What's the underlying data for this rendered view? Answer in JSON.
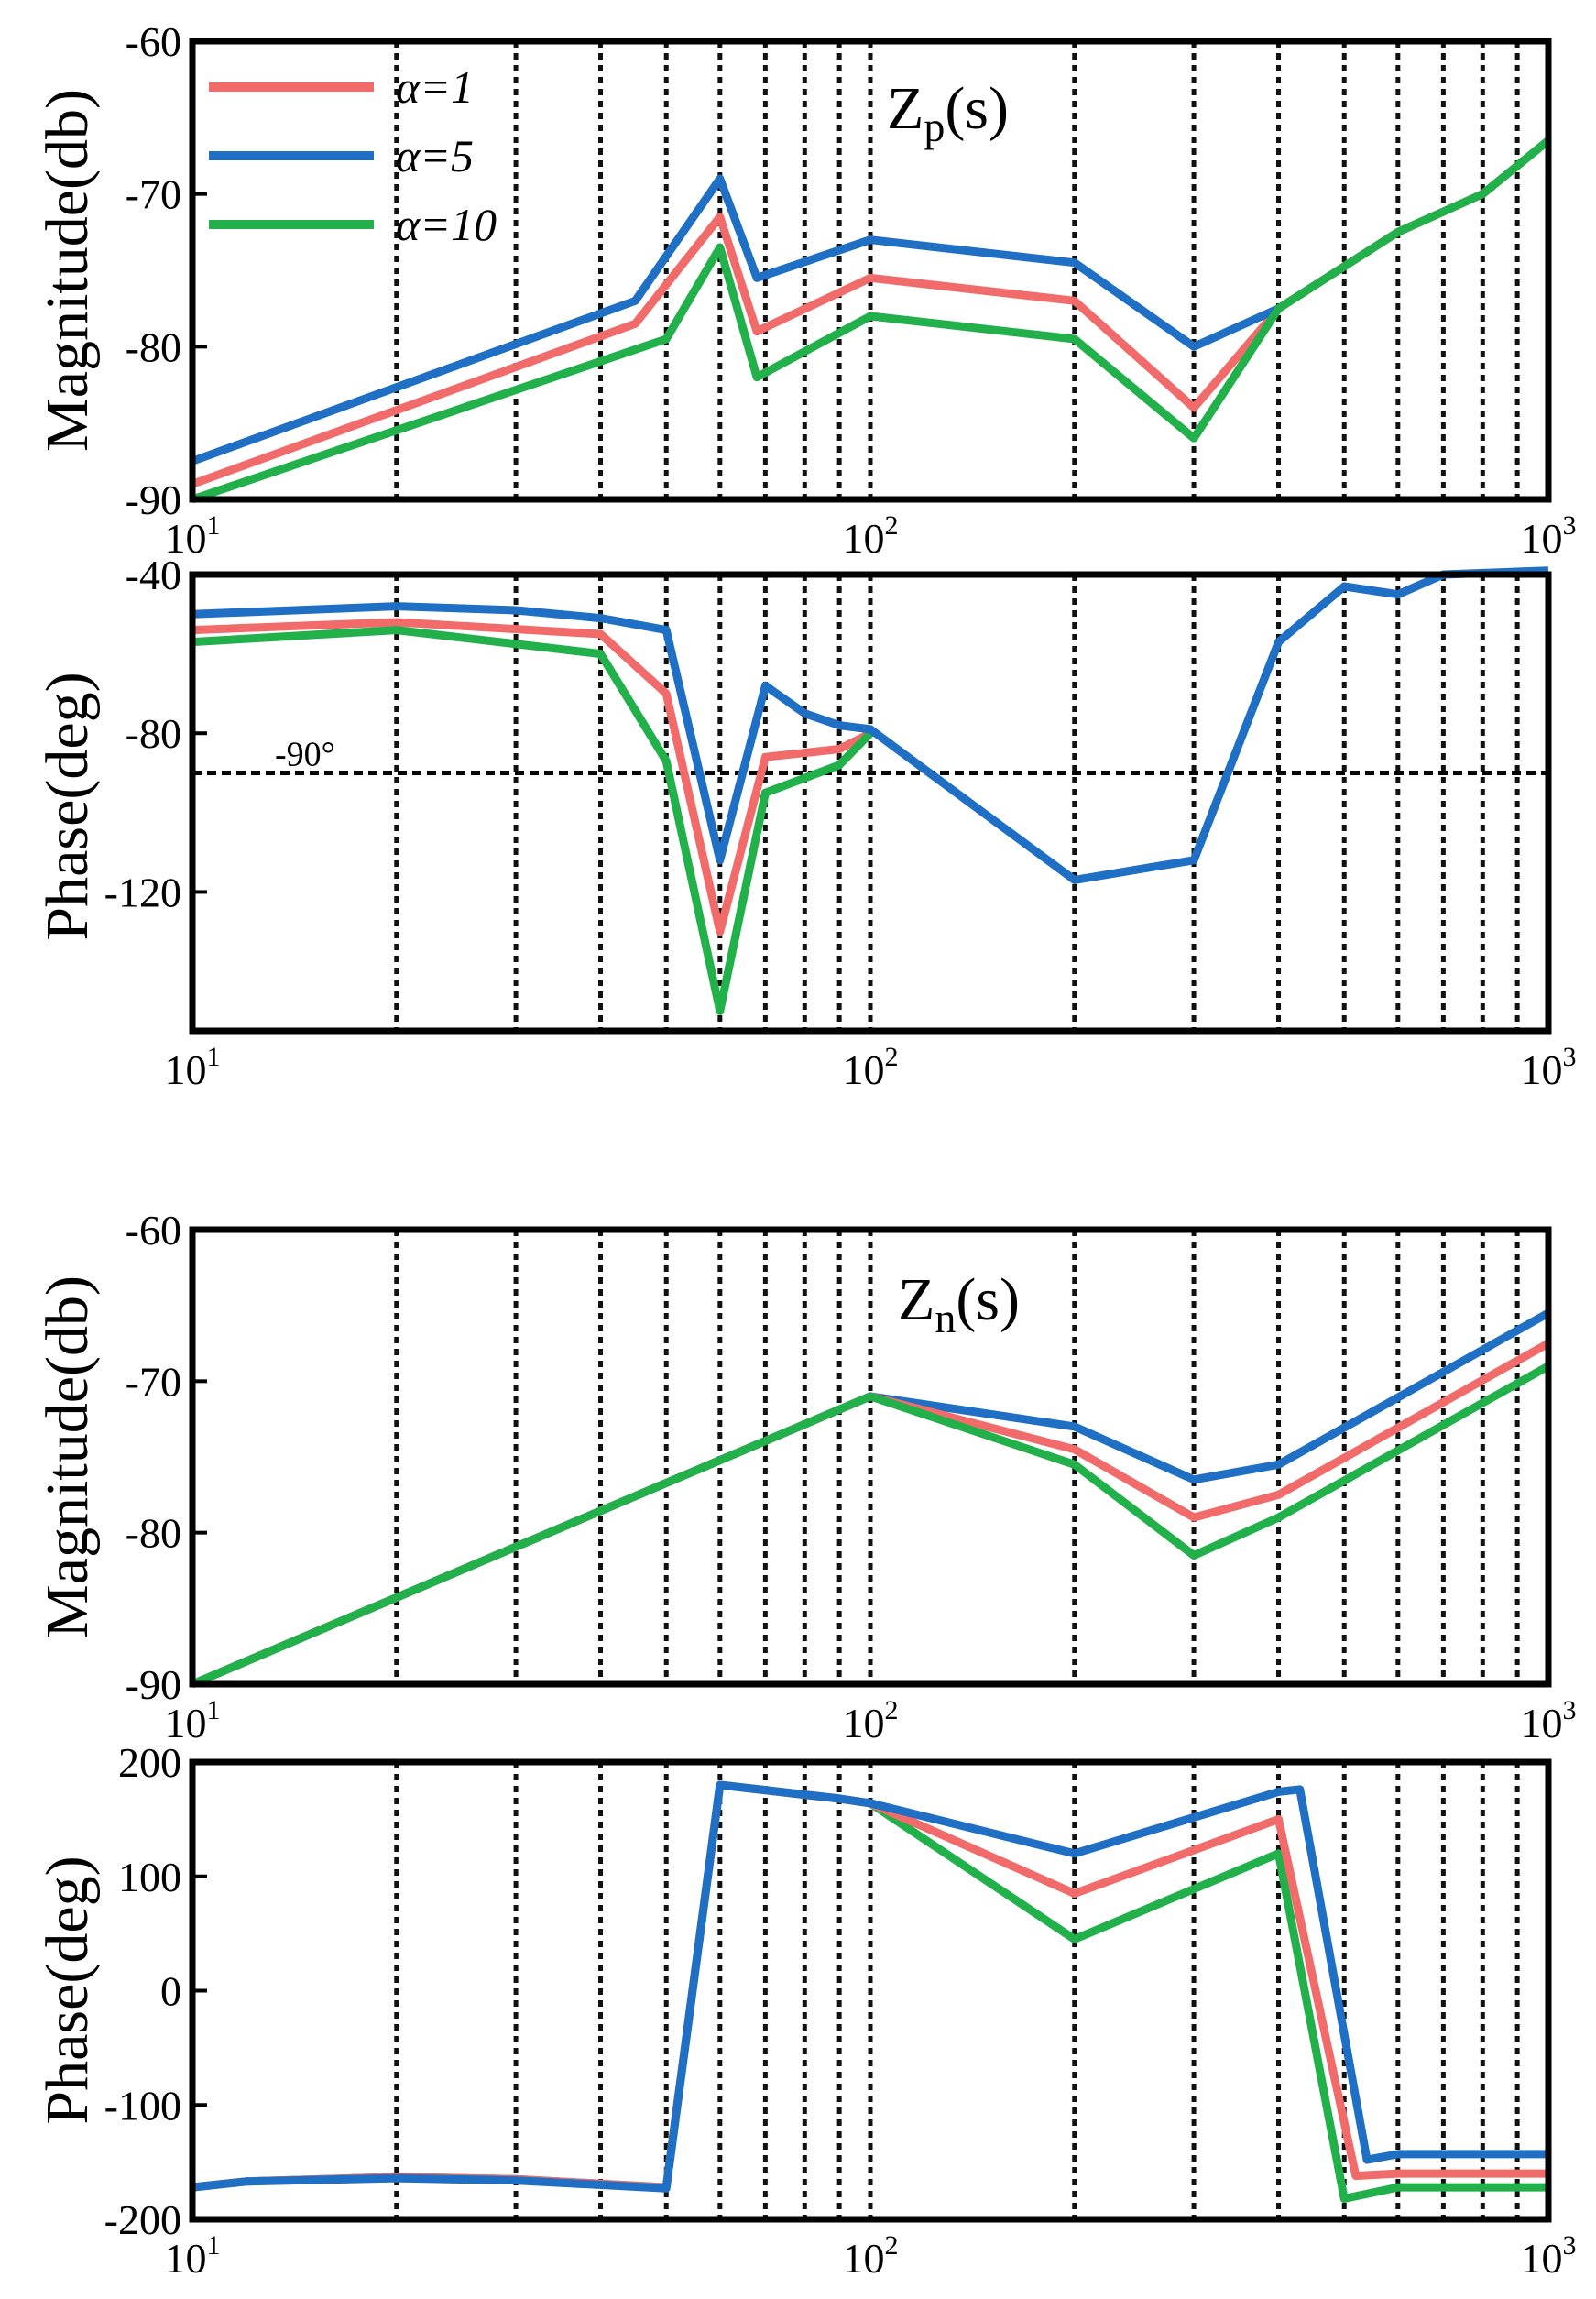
{
  "chart_data": [
    {
      "type": "line",
      "title": "Zp(s)",
      "title_main": "Z",
      "title_sub": "p",
      "title_tail": "(s)",
      "ylabel": "Magnitude(db)",
      "xscale": "log",
      "xlim": [
        10,
        1000
      ],
      "ylim": [
        -90,
        -60
      ],
      "yticks": [
        -60,
        -70,
        -80,
        -90
      ],
      "ytick_labels": [
        "-60",
        "-70",
        "-80",
        "-90"
      ],
      "legend": {
        "placement": "top-left",
        "entries": [
          {
            "label": "α=1",
            "color": "#f26b6b"
          },
          {
            "label": "α=5",
            "color": "#1f6fc5"
          },
          {
            "label": "α=10",
            "color": "#22b04b"
          }
        ]
      },
      "series": [
        {
          "name": "α=1",
          "color": "#f26b6b",
          "x": [
            10,
            45,
            60,
            68,
            100,
            200,
            300,
            400,
            600,
            800,
            1000
          ],
          "y": [
            -89,
            -78.5,
            -71.5,
            -79,
            -75.5,
            -77,
            -84,
            -77.5,
            -72.5,
            -70,
            -66.5
          ]
        },
        {
          "name": "α=5",
          "color": "#1f6fc5",
          "x": [
            10,
            45,
            60,
            68,
            100,
            200,
            300,
            400
          ],
          "y": [
            -87.5,
            -77,
            -69,
            -75.5,
            -73,
            -74.5,
            -80,
            -77.5
          ]
        },
        {
          "name": "α=10",
          "color": "#22b04b",
          "x": [
            10,
            50,
            60,
            68,
            100,
            200,
            300,
            400,
            600,
            800,
            1000
          ],
          "y": [
            -90,
            -79.5,
            -73.5,
            -82,
            -78,
            -79.5,
            -86,
            -77.5,
            -72.5,
            -70,
            -66.5
          ]
        }
      ]
    },
    {
      "type": "line",
      "ylabel": "Phase(deg)",
      "xscale": "log",
      "xlim": [
        10,
        1000
      ],
      "ylim": [
        -155,
        -40
      ],
      "yticks": [
        -40,
        -80,
        -120
      ],
      "ytick_labels": [
        "-40",
        "-80",
        "-120"
      ],
      "reference_line": {
        "y": -90,
        "label": "-90°"
      },
      "series": [
        {
          "name": "α=1",
          "color": "#f26b6b",
          "x": [
            10,
            20,
            40,
            50,
            60,
            70,
            90,
            100
          ],
          "y": [
            -54,
            -52,
            -55,
            -70,
            -130,
            -86,
            -84,
            -80
          ]
        },
        {
          "name": "α=10",
          "color": "#22b04b",
          "x": [
            10,
            20,
            40,
            50,
            60,
            70,
            90,
            100
          ],
          "y": [
            -57,
            -54,
            -60,
            -87,
            -150,
            -95,
            -88,
            -80
          ]
        },
        {
          "name": "α=5",
          "color": "#1f6fc5",
          "x": [
            10,
            20,
            30,
            40,
            50,
            60,
            70,
            80,
            90,
            100,
            200,
            300,
            400,
            500,
            600,
            700,
            1000
          ],
          "y": [
            -50,
            -48,
            -49,
            -51,
            -54,
            -112,
            -68,
            -75,
            -78,
            -79,
            -117,
            -112,
            -57,
            -43,
            -45,
            -40,
            -39
          ]
        }
      ]
    },
    {
      "type": "line",
      "title": "Zn(s)",
      "title_main": "Z",
      "title_sub": "n",
      "title_tail": "(s)",
      "ylabel": "Magnitude(db)",
      "xscale": "log",
      "xlim": [
        10,
        1000
      ],
      "ylim": [
        -90,
        -60
      ],
      "yticks": [
        -60,
        -70,
        -80,
        -90
      ],
      "ytick_labels": [
        "-60",
        "-70",
        "-80",
        "-90"
      ],
      "series": [
        {
          "name": "α=5",
          "color": "#1f6fc5",
          "x": [
            10,
            100,
            200,
            300,
            400,
            1000
          ],
          "y": [
            -90,
            -71,
            -73,
            -76.5,
            -75.5,
            -65.5
          ]
        },
        {
          "name": "α=1",
          "color": "#f26b6b",
          "x": [
            10,
            100,
            200,
            300,
            400,
            1000
          ],
          "y": [
            -90,
            -71,
            -74.5,
            -79,
            -77.5,
            -67.5
          ]
        },
        {
          "name": "α=10",
          "color": "#22b04b",
          "x": [
            10,
            100,
            200,
            300,
            400,
            1000
          ],
          "y": [
            -90,
            -71,
            -75.5,
            -81.5,
            -79,
            -69
          ]
        }
      ]
    },
    {
      "type": "line",
      "ylabel": "Phase(deg)",
      "xscale": "log",
      "xlim": [
        10,
        1000
      ],
      "ylim": [
        -200,
        200
      ],
      "yticks": [
        200,
        100,
        0,
        -100,
        -200
      ],
      "ytick_labels": [
        "200",
        "100",
        "0",
        "-100",
        "-200"
      ],
      "series": [
        {
          "name": "α=10",
          "color": "#22b04b",
          "x": [
            10,
            12,
            20,
            30,
            50,
            60,
            90,
            100,
            200,
            400,
            500,
            600,
            1000
          ],
          "y": [
            -172,
            -167,
            -163,
            -165,
            -172,
            180,
            168,
            164,
            45,
            120,
            -182,
            -172,
            -172
          ]
        },
        {
          "name": "α=1",
          "color": "#f26b6b",
          "x": [
            10,
            12,
            20,
            30,
            50,
            60,
            90,
            100,
            200,
            400,
            520,
            600,
            1000
          ],
          "y": [
            -172,
            -167,
            -163,
            -165,
            -172,
            180,
            168,
            164,
            85,
            150,
            -162,
            -160,
            -160
          ]
        },
        {
          "name": "α=5",
          "color": "#1f6fc5",
          "x": [
            10,
            12,
            20,
            30,
            50,
            60,
            90,
            100,
            200,
            400,
            430,
            540,
            600,
            1000
          ],
          "y": [
            -172,
            -167,
            -164,
            -166,
            -173,
            180,
            168,
            164,
            120,
            174,
            176,
            -148,
            -143,
            -143
          ]
        }
      ]
    }
  ],
  "xtick_label_base": "10",
  "xtick_exponents": [
    "1",
    "2",
    "3"
  ],
  "gridline_freqs": [
    20,
    30,
    40,
    50,
    60,
    70,
    80,
    90,
    200,
    300,
    400,
    500,
    600,
    700,
    800,
    900
  ]
}
